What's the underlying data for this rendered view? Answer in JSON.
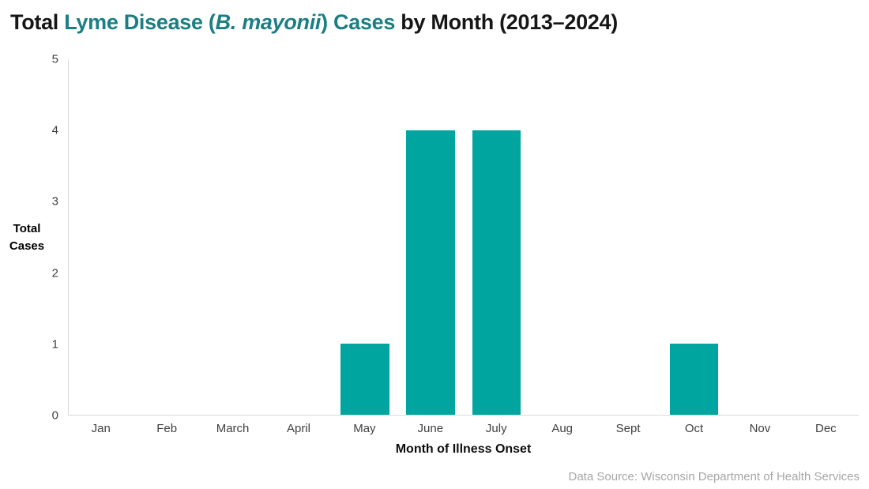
{
  "title": {
    "prefix": "Total ",
    "teal_open": "Lyme Disease (",
    "italic": "B. mayonii",
    "teal_close": ") Cases",
    "suffix": " by Month (2013–2024)"
  },
  "footer": {
    "source": "Data Source: Wisconsin Department of Health Services"
  },
  "colors": {
    "bar": "#00A5A0",
    "title_teal": "#1B7E83",
    "axis_line": "#D9D9D9",
    "tick_text": "#404040",
    "source_text": "#A6A6A6"
  },
  "chart_data": {
    "type": "bar",
    "title": "Total Lyme Disease (B. mayonii) Cases by Month (2013–2024)",
    "categories": [
      "Jan",
      "Feb",
      "March",
      "April",
      "May",
      "June",
      "July",
      "Aug",
      "Sept",
      "Oct",
      "Nov",
      "Dec"
    ],
    "values": [
      0,
      0,
      0,
      0,
      1,
      4,
      4,
      0,
      0,
      1,
      0,
      0
    ],
    "xlabel": "Month of Illness Onset",
    "ylabel": "Total Cases",
    "ylabel_lines": [
      "Total",
      "Cases"
    ],
    "ylim": [
      0,
      5
    ],
    "yticks": [
      0,
      1,
      2,
      3,
      4,
      5
    ],
    "grid": false,
    "legend": false,
    "bar_color": "#00A5A0"
  }
}
